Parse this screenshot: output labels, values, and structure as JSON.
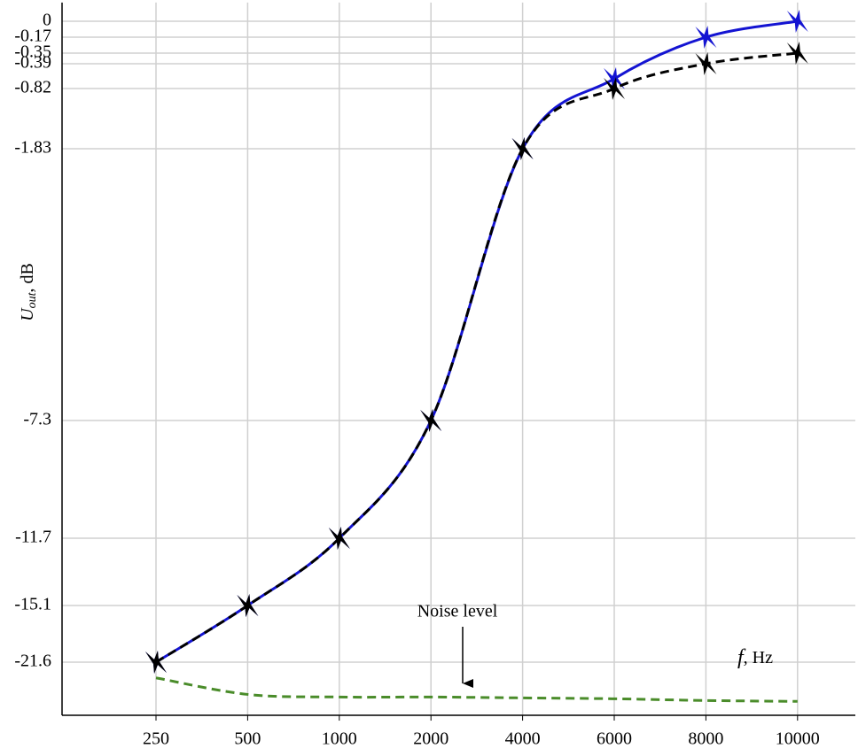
{
  "chart_data": {
    "type": "line",
    "y_label": "U",
    "y_label_sub": "out",
    "y_label_unit": ", dB",
    "x_label": "f",
    "x_label_unit": ", Hz",
    "annotation": "Noise level",
    "categories": [
      "250",
      "500",
      "1000",
      "2000",
      "4000",
      "6000",
      "8000",
      "10000"
    ],
    "ylim": [
      -27.7,
      0.2
    ],
    "yticks": [
      0,
      -0.17,
      -0.35,
      -0.39,
      -0.82,
      -1.83,
      -7.3,
      -11.7,
      -15.1,
      -21.6
    ],
    "grid": true,
    "series": [
      {
        "color": "#1414d2",
        "line_style": "solid",
        "markers": true,
        "values": [
          -21.6,
          -15.1,
          -11.7,
          -7.3,
          -1.83,
          -0.65,
          -0.17,
          0
        ]
      },
      {
        "color": "#000000",
        "line_style": "dashed",
        "markers": true,
        "values": [
          -21.6,
          -15.1,
          -11.7,
          -7.3,
          -1.83,
          -0.82,
          -0.39,
          -0.35
        ]
      },
      {
        "color": "#4a8c2a",
        "line_style": "dashed",
        "markers": false,
        "values": [
          -23.4,
          -25.3,
          -25.6,
          -25.6,
          -25.7,
          -25.8,
          -26.0,
          -26.1
        ]
      }
    ]
  }
}
